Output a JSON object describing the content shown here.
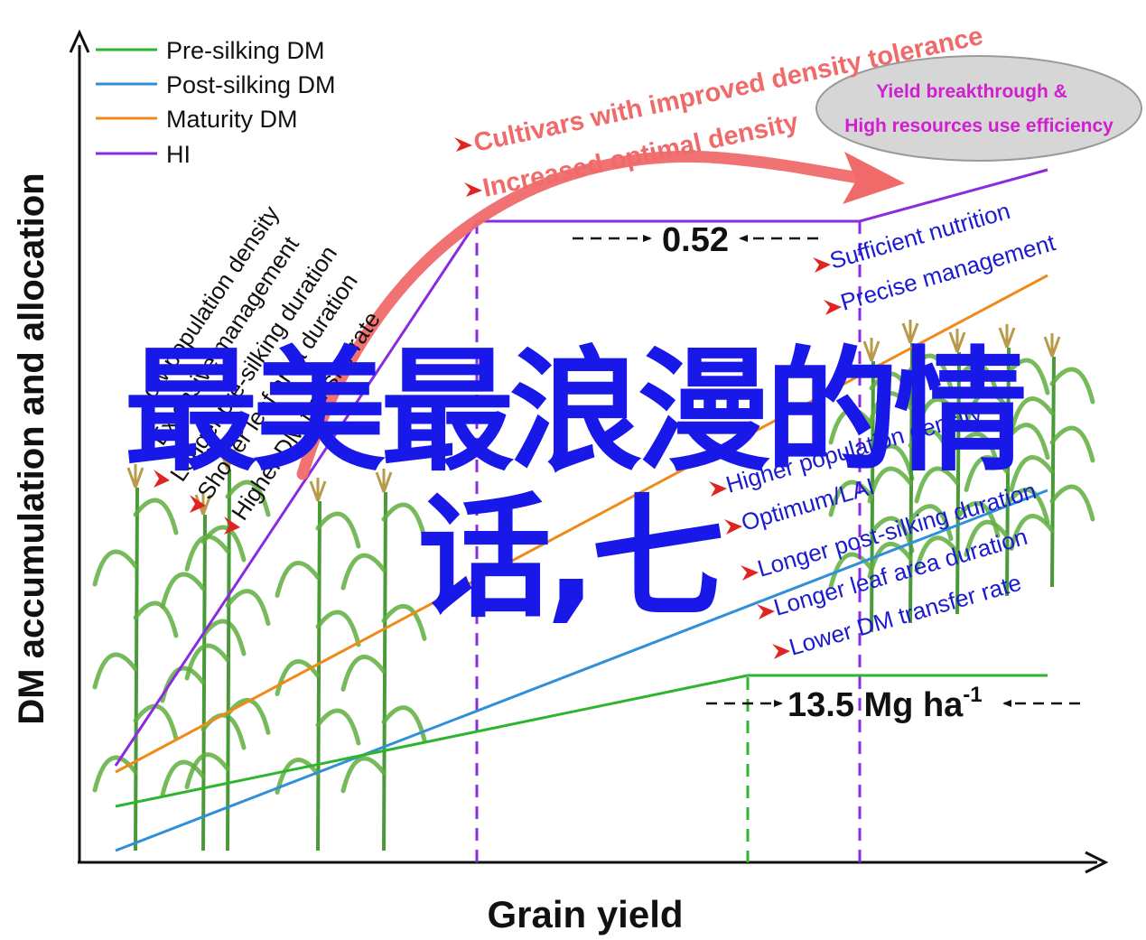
{
  "axes": {
    "x_label": "Grain yield",
    "y_label": "DM accumulation and allocation"
  },
  "legend": [
    {
      "label": "Pre-silking DM",
      "color": "#2db52d"
    },
    {
      "label": "Post-silking DM",
      "color": "#2f8fd8"
    },
    {
      "label": "Maturity DM",
      "color": "#ef8a1a"
    },
    {
      "label": "HI",
      "color": "#8a2be2"
    }
  ],
  "annotations": {
    "hi_plateau": "0.52",
    "pre_silking_plateau": "13.5 Mg ha",
    "pre_silking_plateau_sup": "-1",
    "arrow_text_top": "Cultivars with improved density tolerance",
    "arrow_text_bottom": "Increased optimal density",
    "ellipse_line1": "Yield breakthrough &",
    "ellipse_line2": "High resources use efficiency",
    "left_factors": [
      "Low population density",
      "Extensive management",
      "Longer pre-silking duration",
      "Shorter leaf area duration",
      "Higher DM transfer rate"
    ],
    "right_top_factors": [
      "Sufficient nutrition",
      "Precise management"
    ],
    "right_bottom_factors": [
      "Higher population density",
      "Optimum/LAI",
      "Longer  post-silking duration",
      "Longer leaf area duration",
      "Lower DM transfer rate"
    ]
  },
  "overlay": {
    "line1": "最美最浪漫的情",
    "line2": "话,七"
  },
  "colors": {
    "pre_silking": "#2db52d",
    "post_silking": "#2f8fd8",
    "maturity": "#ef8a1a",
    "hi": "#8a2be2",
    "big_arrow": "#f06a6a",
    "factor_text": "#1a1ad0",
    "factor_red": "#e02424",
    "ellipse_text": "#d01ed0",
    "overlay_text": "#1818e8"
  }
}
